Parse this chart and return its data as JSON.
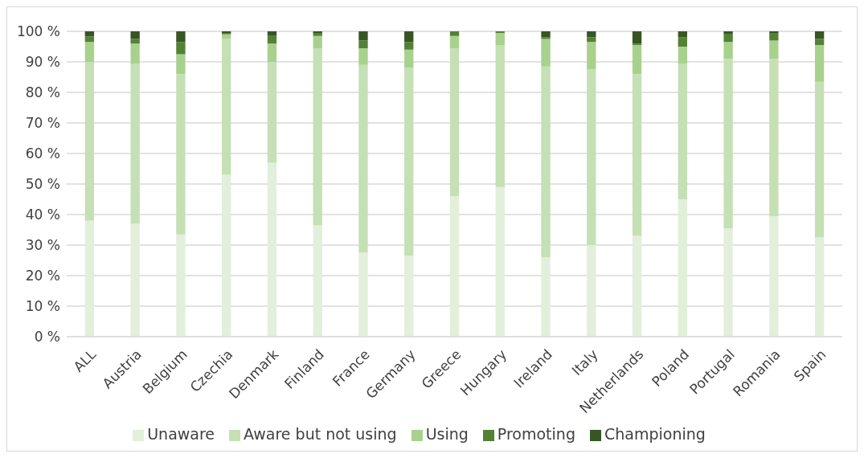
{
  "chart_data": {
    "type": "bar",
    "stacked": true,
    "categories": [
      "ALL",
      "Austria",
      "Belgium",
      "Czechia",
      "Denmark",
      "Finland",
      "France",
      "Germany",
      "Greece",
      "Hungary",
      "Ireland",
      "Italy",
      "Netherlands",
      "Poland",
      "Portugal",
      "Romania",
      "Spain"
    ],
    "series": [
      {
        "name": "Unaware",
        "color": "#e2efda",
        "values": [
          38,
          37,
          33.5,
          53,
          57,
          36.5,
          27.5,
          26.5,
          46,
          49,
          26,
          30,
          33,
          45,
          35.5,
          39.5,
          32.5
        ]
      },
      {
        "name": "Aware but not using",
        "color": "#c5e0b4",
        "values": [
          52,
          52.5,
          52.5,
          44.5,
          33,
          58,
          61.5,
          61.5,
          48.5,
          46.5,
          62.5,
          57.5,
          53,
          44.5,
          55.5,
          51.5,
          51
        ]
      },
      {
        "name": "Using",
        "color": "#a9d18e",
        "values": [
          6.5,
          6.5,
          6.5,
          1.5,
          6,
          4,
          5.5,
          6,
          4,
          4,
          9,
          9,
          9.5,
          5.5,
          5.5,
          6,
          12
        ]
      },
      {
        "name": "Promoting",
        "color": "#548235",
        "values": [
          1.8,
          1.5,
          4,
          0.5,
          2.5,
          1,
          2.5,
          2.5,
          1.5,
          0.5,
          0.5,
          1.5,
          0.5,
          3,
          2.5,
          2.5,
          2
        ]
      },
      {
        "name": "Championing",
        "color": "#375623",
        "values": [
          1.7,
          2.5,
          3.5,
          0.5,
          1.5,
          0.5,
          3,
          3.5,
          0,
          0,
          2,
          2,
          4,
          2,
          1,
          0.5,
          2.5
        ]
      }
    ],
    "ylim": [
      0,
      100
    ],
    "yticks": [
      {
        "value": 0,
        "label": "0 %"
      },
      {
        "value": 10,
        "label": "10 %"
      },
      {
        "value": 20,
        "label": "20 %"
      },
      {
        "value": 30,
        "label": "30 %"
      },
      {
        "value": 40,
        "label": "40 %"
      },
      {
        "value": 50,
        "label": "50 %"
      },
      {
        "value": 60,
        "label": "60 %"
      },
      {
        "value": 70,
        "label": "70 %"
      },
      {
        "value": 80,
        "label": "80 %"
      },
      {
        "value": 90,
        "label": "90 %"
      },
      {
        "value": 100,
        "label": "100 %"
      }
    ],
    "grid": "y",
    "legend": "bottom"
  }
}
